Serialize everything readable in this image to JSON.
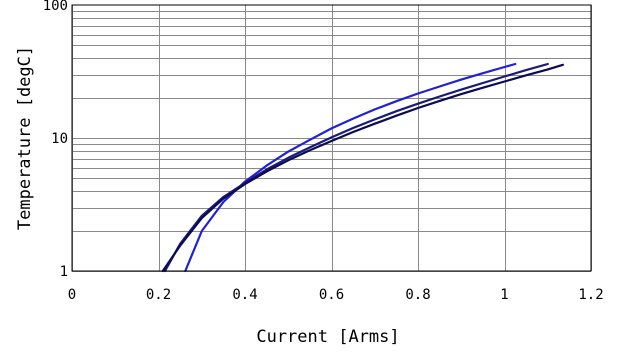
{
  "chart_data": {
    "type": "line",
    "title": "",
    "xlabel": "Current [Arms]",
    "ylabel": "Temperature [degC]",
    "xlim": [
      0,
      1.2
    ],
    "ylim": [
      1,
      100
    ],
    "yscale": "log",
    "grid": true,
    "x_ticks": [
      0,
      0.2,
      0.4,
      0.6,
      0.8,
      1,
      1.2
    ],
    "x_tick_labels": [
      "0",
      "0.2",
      "0.4",
      "0.6",
      "0.8",
      "1",
      "1.2"
    ],
    "y_ticks": [
      1,
      10,
      100
    ],
    "y_tick_labels": [
      "1",
      "10",
      "100"
    ],
    "series": [
      {
        "color": "#2020d8",
        "x": [
          0.262,
          0.3,
          0.35,
          0.4,
          0.45,
          0.5,
          0.55,
          0.6,
          0.65,
          0.7,
          0.75,
          0.8,
          0.85,
          0.9,
          0.95,
          1.0,
          1.025
        ],
        "y": [
          1.0,
          2.0,
          3.3,
          4.7,
          6.2,
          7.9,
          9.7,
          11.8,
          14.0,
          16.4,
          18.9,
          21.6,
          24.4,
          27.5,
          30.7,
          34.2,
          36.0
        ]
      },
      {
        "color": "#1a1a7a",
        "x": [
          0.215,
          0.25,
          0.3,
          0.35,
          0.4,
          0.45,
          0.5,
          0.55,
          0.6,
          0.65,
          0.7,
          0.75,
          0.8,
          0.85,
          0.9,
          0.95,
          1.0,
          1.05,
          1.1
        ],
        "y": [
          1.0,
          1.6,
          2.6,
          3.6,
          4.6,
          5.8,
          7.1,
          8.5,
          10.1,
          11.9,
          13.8,
          15.9,
          18.1,
          20.5,
          23.1,
          25.9,
          29.0,
          32.4,
          36.0
        ]
      },
      {
        "color": "#0c0c55",
        "x": [
          0.21,
          0.25,
          0.3,
          0.35,
          0.4,
          0.45,
          0.5,
          0.55,
          0.6,
          0.65,
          0.7,
          0.75,
          0.8,
          0.85,
          0.9,
          0.95,
          1.0,
          1.05,
          1.1,
          1.135
        ],
        "y": [
          1.0,
          1.55,
          2.5,
          3.5,
          4.5,
          5.6,
          6.8,
          8.1,
          9.5,
          11.1,
          12.8,
          14.7,
          16.8,
          19.0,
          21.4,
          23.9,
          26.6,
          29.6,
          32.8,
          35.5
        ]
      }
    ]
  }
}
